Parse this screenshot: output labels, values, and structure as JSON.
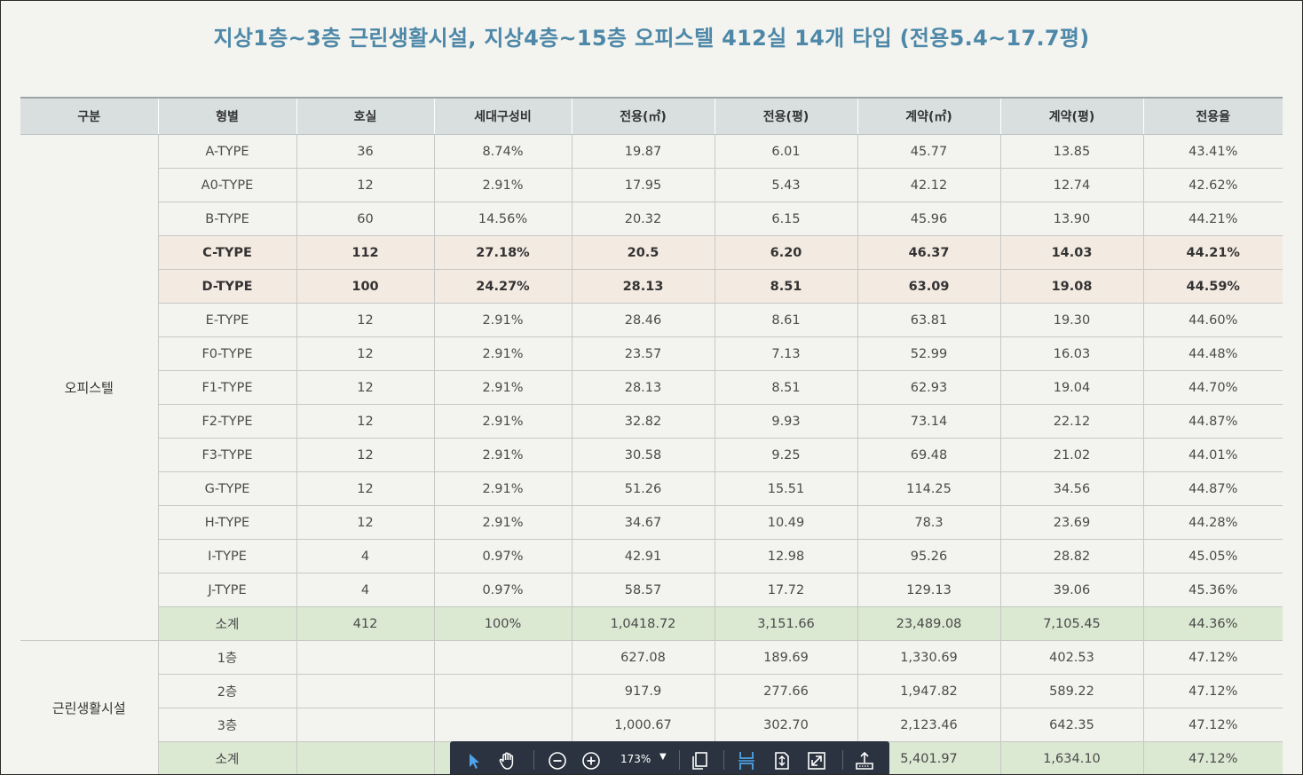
{
  "title": "지상1층~3층 근린생활시설, 지상4층~15층 오피스텔 412실 14개 타입 (전용5.4~17.7평)",
  "headers": [
    "구분",
    "형별",
    "호실",
    "세대구성비",
    "전용(㎡)",
    "전용(평)",
    "계약(㎡)",
    "계약(평)",
    "전용율"
  ],
  "groups": [
    {
      "label": "오피스텔",
      "rows": [
        {
          "cells": [
            "A-TYPE",
            "36",
            "8.74%",
            "19.87",
            "6.01",
            "45.77",
            "13.85",
            "43.41%"
          ],
          "style": ""
        },
        {
          "cells": [
            "A0-TYPE",
            "12",
            "2.91%",
            "17.95",
            "5.43",
            "42.12",
            "12.74",
            "42.62%"
          ],
          "style": ""
        },
        {
          "cells": [
            "B-TYPE",
            "60",
            "14.56%",
            "20.32",
            "6.15",
            "45.96",
            "13.90",
            "44.21%"
          ],
          "style": ""
        },
        {
          "cells": [
            "C-TYPE",
            "112",
            "27.18%",
            "20.5",
            "6.20",
            "46.37",
            "14.03",
            "44.21%"
          ],
          "style": "hl"
        },
        {
          "cells": [
            "D-TYPE",
            "100",
            "24.27%",
            "28.13",
            "8.51",
            "63.09",
            "19.08",
            "44.59%"
          ],
          "style": "hl"
        },
        {
          "cells": [
            "E-TYPE",
            "12",
            "2.91%",
            "28.46",
            "8.61",
            "63.81",
            "19.30",
            "44.60%"
          ],
          "style": ""
        },
        {
          "cells": [
            "F0-TYPE",
            "12",
            "2.91%",
            "23.57",
            "7.13",
            "52.99",
            "16.03",
            "44.48%"
          ],
          "style": ""
        },
        {
          "cells": [
            "F1-TYPE",
            "12",
            "2.91%",
            "28.13",
            "8.51",
            "62.93",
            "19.04",
            "44.70%"
          ],
          "style": ""
        },
        {
          "cells": [
            "F2-TYPE",
            "12",
            "2.91%",
            "32.82",
            "9.93",
            "73.14",
            "22.12",
            "44.87%"
          ],
          "style": ""
        },
        {
          "cells": [
            "F3-TYPE",
            "12",
            "2.91%",
            "30.58",
            "9.25",
            "69.48",
            "21.02",
            "44.01%"
          ],
          "style": ""
        },
        {
          "cells": [
            "G-TYPE",
            "12",
            "2.91%",
            "51.26",
            "15.51",
            "114.25",
            "34.56",
            "44.87%"
          ],
          "style": ""
        },
        {
          "cells": [
            "H-TYPE",
            "12",
            "2.91%",
            "34.67",
            "10.49",
            "78.3",
            "23.69",
            "44.28%"
          ],
          "style": ""
        },
        {
          "cells": [
            "I-TYPE",
            "4",
            "0.97%",
            "42.91",
            "12.98",
            "95.26",
            "28.82",
            "45.05%"
          ],
          "style": ""
        },
        {
          "cells": [
            "J-TYPE",
            "4",
            "0.97%",
            "58.57",
            "17.72",
            "129.13",
            "39.06",
            "45.36%"
          ],
          "style": ""
        },
        {
          "cells": [
            "소계",
            "412",
            "100%",
            "1,0418.72",
            "3,151.66",
            "23,489.08",
            "7,105.45",
            "44.36%"
          ],
          "style": "sub"
        }
      ]
    },
    {
      "label": "근린생활시설",
      "rows": [
        {
          "cells": [
            "1층",
            "",
            "",
            "627.08",
            "189.69",
            "1,330.69",
            "402.53",
            "47.12%"
          ],
          "style": ""
        },
        {
          "cells": [
            "2층",
            "",
            "",
            "917.9",
            "277.66",
            "1,947.82",
            "589.22",
            "47.12%"
          ],
          "style": ""
        },
        {
          "cells": [
            "3층",
            "",
            "",
            "1,000.67",
            "302.70",
            "2,123.46",
            "642.35",
            "47.12%"
          ],
          "style": ""
        },
        {
          "cells": [
            "소계",
            "",
            "",
            "",
            "",
            "5,401.97",
            "1,634.10",
            "47.12%"
          ],
          "style": "sub"
        }
      ]
    }
  ],
  "toolbar": {
    "zoom": "173%",
    "icons": [
      "select-icon",
      "hand-icon",
      "zoom-out-icon",
      "zoom-in-icon",
      "pages-icon",
      "fit-width-icon",
      "fit-page-icon",
      "fullscreen-icon",
      "export-icon"
    ]
  }
}
